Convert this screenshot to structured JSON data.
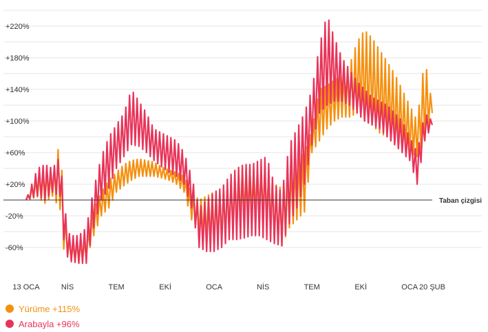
{
  "chart_data": {
    "type": "line",
    "title": "",
    "xlabel": "",
    "ylabel": "",
    "ylim": [
      -80,
      240
    ],
    "y_ticks": [
      {
        "value": 220,
        "label": "+220%"
      },
      {
        "value": 180,
        "label": "+180%"
      },
      {
        "value": 140,
        "label": "+140%"
      },
      {
        "value": 100,
        "label": "+100%"
      },
      {
        "value": 60,
        "label": "+60%"
      },
      {
        "value": 20,
        "label": "+20%"
      },
      {
        "value": -20,
        "label": "-20%"
      },
      {
        "value": -60,
        "label": "-60%"
      }
    ],
    "x_ticks": [
      {
        "week": 0,
        "label": "13 OCA"
      },
      {
        "week": 11,
        "label": "NİS"
      },
      {
        "week": 24,
        "label": "TEM"
      },
      {
        "week": 37,
        "label": "EKİ"
      },
      {
        "week": 50,
        "label": "OCA"
      },
      {
        "week": 63,
        "label": "NİS"
      },
      {
        "week": 76,
        "label": "TEM"
      },
      {
        "week": 89,
        "label": "EKİ"
      },
      {
        "week": 102,
        "label": "OCA"
      },
      {
        "week": 108,
        "label": "20 ŞUB"
      }
    ],
    "baseline": {
      "value": 0,
      "label": "Taban çizgisi"
    },
    "grid": true,
    "legend_position": "bottom-left",
    "series": [
      {
        "name": "Yürüme +115%",
        "color": "#f5900f",
        "weeks": [
          0,
          3,
          5,
          7,
          9,
          10,
          11,
          12,
          14,
          16,
          18,
          20,
          22,
          24,
          26,
          28,
          30,
          32,
          34,
          36,
          38,
          40,
          42,
          44,
          46,
          48,
          50,
          52,
          54,
          56,
          58,
          60,
          62,
          64,
          66,
          68,
          70,
          72,
          74,
          76,
          78,
          80,
          82,
          84,
          86,
          88,
          90,
          92,
          94,
          96,
          98,
          100,
          102,
          104,
          106,
          108
        ],
        "low": [
          0,
          4,
          -4,
          5,
          -12,
          -62,
          -70,
          -76,
          -78,
          -75,
          -45,
          -20,
          -10,
          10,
          18,
          25,
          30,
          30,
          30,
          28,
          25,
          20,
          10,
          -25,
          -45,
          -50,
          -55,
          -52,
          -40,
          -30,
          -20,
          -15,
          -12,
          -20,
          -50,
          -58,
          -35,
          -25,
          -15,
          60,
          75,
          90,
          100,
          105,
          105,
          110,
          100,
          95,
          85,
          80,
          70,
          65,
          60,
          55,
          75,
          110
        ],
        "high": [
          0,
          30,
          38,
          30,
          75,
          0,
          -50,
          -55,
          -55,
          -50,
          -10,
          10,
          25,
          35,
          45,
          50,
          52,
          50,
          48,
          42,
          38,
          35,
          30,
          10,
          0,
          5,
          10,
          12,
          20,
          35,
          42,
          40,
          38,
          40,
          20,
          15,
          40,
          50,
          60,
          90,
          140,
          145,
          152,
          158,
          170,
          200,
          215,
          205,
          190,
          175,
          160,
          140,
          120,
          100,
          180,
          120
        ]
      },
      {
        "name": "Arabayla +96%",
        "color": "#e8345a",
        "weeks": [
          0,
          3,
          5,
          7,
          9,
          10,
          11,
          12,
          14,
          16,
          18,
          20,
          22,
          24,
          26,
          28,
          30,
          32,
          34,
          36,
          38,
          40,
          42,
          44,
          46,
          48,
          50,
          52,
          54,
          56,
          58,
          60,
          62,
          64,
          66,
          68,
          70,
          72,
          74,
          76,
          78,
          80,
          82,
          84,
          86,
          88,
          90,
          92,
          94,
          96,
          98,
          100,
          102,
          104,
          106,
          108
        ],
        "low": [
          0,
          5,
          0,
          10,
          5,
          -50,
          -72,
          -78,
          -80,
          -80,
          -35,
          0,
          15,
          40,
          55,
          70,
          68,
          60,
          50,
          42,
          35,
          30,
          20,
          -10,
          -60,
          -65,
          -65,
          -60,
          -50,
          -50,
          -48,
          -45,
          -45,
          -50,
          -55,
          -58,
          -30,
          -10,
          20,
          70,
          110,
          120,
          125,
          125,
          120,
          110,
          100,
          95,
          90,
          80,
          70,
          60,
          50,
          20,
          75,
          95
        ],
        "high": [
          0,
          40,
          45,
          40,
          55,
          5,
          -40,
          -45,
          -45,
          -35,
          15,
          55,
          80,
          95,
          110,
          140,
          125,
          110,
          90,
          85,
          80,
          75,
          60,
          30,
          -10,
          0,
          10,
          15,
          30,
          40,
          45,
          45,
          50,
          55,
          20,
          10,
          70,
          90,
          110,
          140,
          195,
          235,
          205,
          180,
          165,
          150,
          140,
          130,
          125,
          120,
          110,
          100,
          80,
          60,
          110,
          100
        ]
      }
    ]
  }
}
